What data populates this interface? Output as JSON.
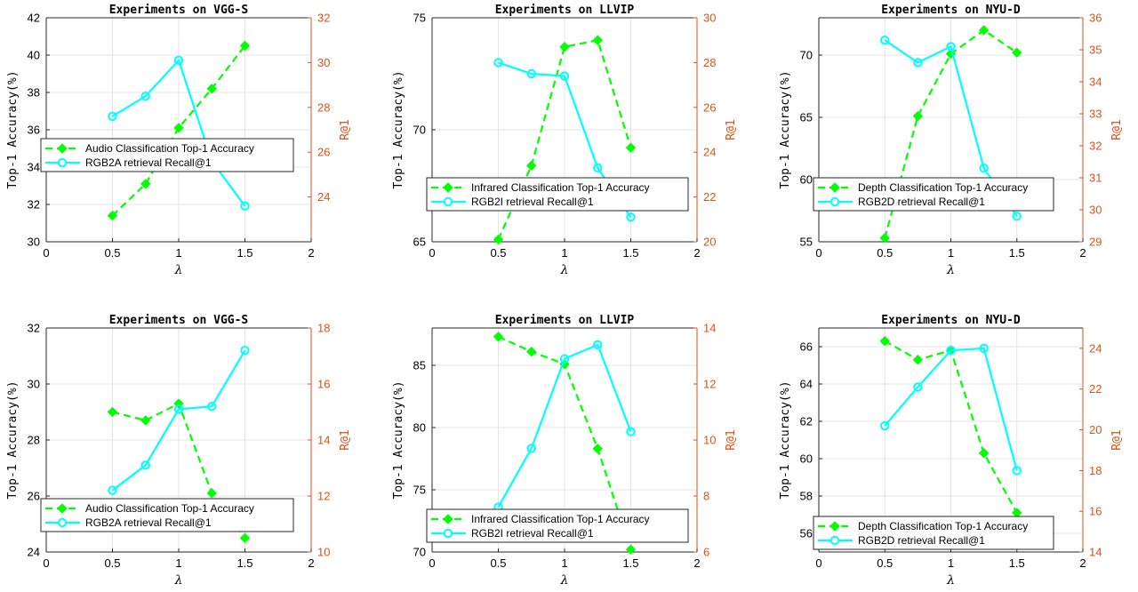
{
  "colors": {
    "acc": "#00ff00",
    "ret": "#00ffff",
    "right_axis": "#d95319",
    "grid": "#e4e4e4"
  },
  "chart_data": [
    {
      "type": "line",
      "title": "Experiments on VGG-S",
      "xlabel": "λ",
      "ylabel": "Top-1 Accuracy(%)",
      "ylabel_right": "R@1",
      "xlim": [
        0,
        2
      ],
      "xticks": [
        0,
        0.5,
        1,
        1.5,
        2
      ],
      "ylim": [
        30,
        42
      ],
      "yticks": [
        30,
        32,
        34,
        36,
        38,
        40,
        42
      ],
      "ylim_right": [
        22,
        32
      ],
      "yticks_right": [
        24,
        26,
        28,
        30,
        32
      ],
      "grid": true,
      "legend_position": "middle-left",
      "series": [
        {
          "name": "Audio Classification Top-1 Accuracy",
          "axis": "left",
          "style": "dashed-diamond",
          "x": [
            0.5,
            0.75,
            1,
            1.25,
            1.5
          ],
          "values": [
            31.4,
            33.1,
            36.1,
            38.2,
            40.5
          ]
        },
        {
          "name": "RGB2A retrieval Recall@1",
          "axis": "right",
          "style": "solid-circle",
          "x": [
            0.5,
            0.75,
            1,
            1.25,
            1.5
          ],
          "values": [
            27.6,
            28.5,
            30.1,
            25.6,
            23.6
          ]
        }
      ]
    },
    {
      "type": "line",
      "title": "Experiments on LLVIP",
      "xlabel": "λ",
      "ylabel": "Top-1 Accuracy(%)",
      "ylabel_right": "R@1",
      "xlim": [
        0,
        2
      ],
      "xticks": [
        0,
        0.5,
        1,
        1.5,
        2
      ],
      "ylim": [
        65,
        75
      ],
      "yticks": [
        65,
        70,
        75
      ],
      "ylim_right": [
        20,
        30
      ],
      "yticks_right": [
        20,
        22,
        24,
        26,
        28,
        30
      ],
      "grid": true,
      "legend_position": "lower-middle",
      "series": [
        {
          "name": "Infrared Classification Top-1 Accuracy",
          "axis": "left",
          "style": "dashed-diamond",
          "x": [
            0.5,
            0.75,
            1,
            1.25,
            1.5
          ],
          "values": [
            65.1,
            68.4,
            73.7,
            74.0,
            69.2
          ]
        },
        {
          "name": "RGB2I retrieval Recall@1",
          "axis": "right",
          "style": "solid-circle",
          "x": [
            0.5,
            0.75,
            1,
            1.25,
            1.5
          ],
          "values": [
            28.0,
            27.5,
            27.4,
            23.3,
            21.1
          ]
        }
      ]
    },
    {
      "type": "line",
      "title": "Experiments on NYU-D",
      "xlabel": "λ",
      "ylabel": "Top-1 Accuracy(%)",
      "ylabel_right": "R@1",
      "xlim": [
        0,
        2
      ],
      "xticks": [
        0,
        0.5,
        1,
        1.5,
        2
      ],
      "ylim": [
        55,
        73
      ],
      "yticks": [
        55,
        60,
        65,
        70
      ],
      "ylim_right": [
        29,
        36
      ],
      "yticks_right": [
        29,
        30,
        31,
        32,
        33,
        34,
        35,
        36
      ],
      "grid": true,
      "legend_position": "lower-middle",
      "series": [
        {
          "name": "Depth Classification Top-1 Accuracy",
          "axis": "left",
          "style": "dashed-diamond",
          "x": [
            0.5,
            0.75,
            1,
            1.25,
            1.5
          ],
          "values": [
            55.3,
            65.1,
            70.1,
            72.0,
            70.2
          ]
        },
        {
          "name": "RGB2D retrieval Recall@1",
          "axis": "right",
          "style": "solid-circle",
          "x": [
            0.5,
            0.75,
            1,
            1.25,
            1.5
          ],
          "values": [
            35.3,
            34.6,
            35.1,
            31.3,
            29.8
          ]
        }
      ]
    },
    {
      "type": "line",
      "title": "Experiments on VGG-S",
      "xlabel": "λ",
      "ylabel": "Top-1 Accuracy(%)",
      "ylabel_right": "R@1",
      "xlim": [
        0,
        2
      ],
      "xticks": [
        0,
        0.5,
        1,
        1.5,
        2
      ],
      "ylim": [
        24,
        32
      ],
      "yticks": [
        24,
        26,
        28,
        30,
        32
      ],
      "ylim_right": [
        10,
        18
      ],
      "yticks_right": [
        10,
        12,
        14,
        16,
        18
      ],
      "grid": true,
      "legend_position": "bottom-left",
      "series": [
        {
          "name": "Audio Classification Top-1 Accuracy",
          "axis": "left",
          "style": "dashed-diamond",
          "x": [
            0.5,
            0.75,
            1,
            1.25,
            1.5
          ],
          "values": [
            29.0,
            28.7,
            29.3,
            26.1,
            24.5
          ]
        },
        {
          "name": "RGB2A retrieval Recall@1",
          "axis": "right",
          "style": "solid-circle",
          "x": [
            0.5,
            0.75,
            1,
            1.25,
            1.5
          ],
          "values": [
            12.2,
            13.1,
            15.1,
            15.2,
            17.2
          ]
        }
      ]
    },
    {
      "type": "line",
      "title": "Experiments on LLVIP",
      "xlabel": "λ",
      "ylabel": "Top-1 Accuracy(%)",
      "ylabel_right": "R@1",
      "xlim": [
        0,
        2
      ],
      "xticks": [
        0,
        0.5,
        1,
        1.5,
        2
      ],
      "ylim": [
        70,
        88
      ],
      "yticks": [
        70,
        75,
        80,
        85
      ],
      "ylim_right": [
        6,
        14
      ],
      "yticks_right": [
        6,
        8,
        10,
        12,
        14
      ],
      "grid": true,
      "legend_position": "bottom-left",
      "series": [
        {
          "name": "Infrared Classification Top-1 Accuracy",
          "axis": "left",
          "style": "dashed-diamond",
          "x": [
            0.5,
            0.75,
            1,
            1.25,
            1.5
          ],
          "values": [
            87.3,
            86.1,
            85.1,
            78.3,
            70.2
          ]
        },
        {
          "name": "RGB2I retrieval Recall@1",
          "axis": "right",
          "style": "solid-circle",
          "x": [
            0.5,
            0.75,
            1,
            1.25,
            1.5
          ],
          "values": [
            7.6,
            9.7,
            12.9,
            13.4,
            10.3
          ]
        }
      ]
    },
    {
      "type": "line",
      "title": "Experiments on NYU-D",
      "xlabel": "λ",
      "ylabel": "Top-1 Accuracy(%)",
      "ylabel_right": "R@1",
      "xlim": [
        0,
        2
      ],
      "xticks": [
        0,
        0.5,
        1,
        1.5,
        2
      ],
      "ylim": [
        55,
        67
      ],
      "yticks": [
        56,
        58,
        60,
        62,
        64,
        66
      ],
      "ylim_right": [
        14,
        25
      ],
      "yticks_right": [
        14,
        16,
        18,
        20,
        22,
        24
      ],
      "grid": true,
      "legend_position": "bottom-left",
      "series": [
        {
          "name": "Depth Classification Top-1 Accuracy",
          "axis": "left",
          "style": "dashed-diamond",
          "x": [
            0.5,
            0.75,
            1,
            1.25,
            1.5
          ],
          "values": [
            66.3,
            65.3,
            65.8,
            60.3,
            57.1
          ]
        },
        {
          "name": "RGB2D retrieval Recall@1",
          "axis": "right",
          "style": "solid-circle",
          "x": [
            0.5,
            0.75,
            1,
            1.25,
            1.5
          ],
          "values": [
            20.2,
            22.1,
            23.9,
            24.0,
            18.0
          ]
        }
      ]
    }
  ]
}
